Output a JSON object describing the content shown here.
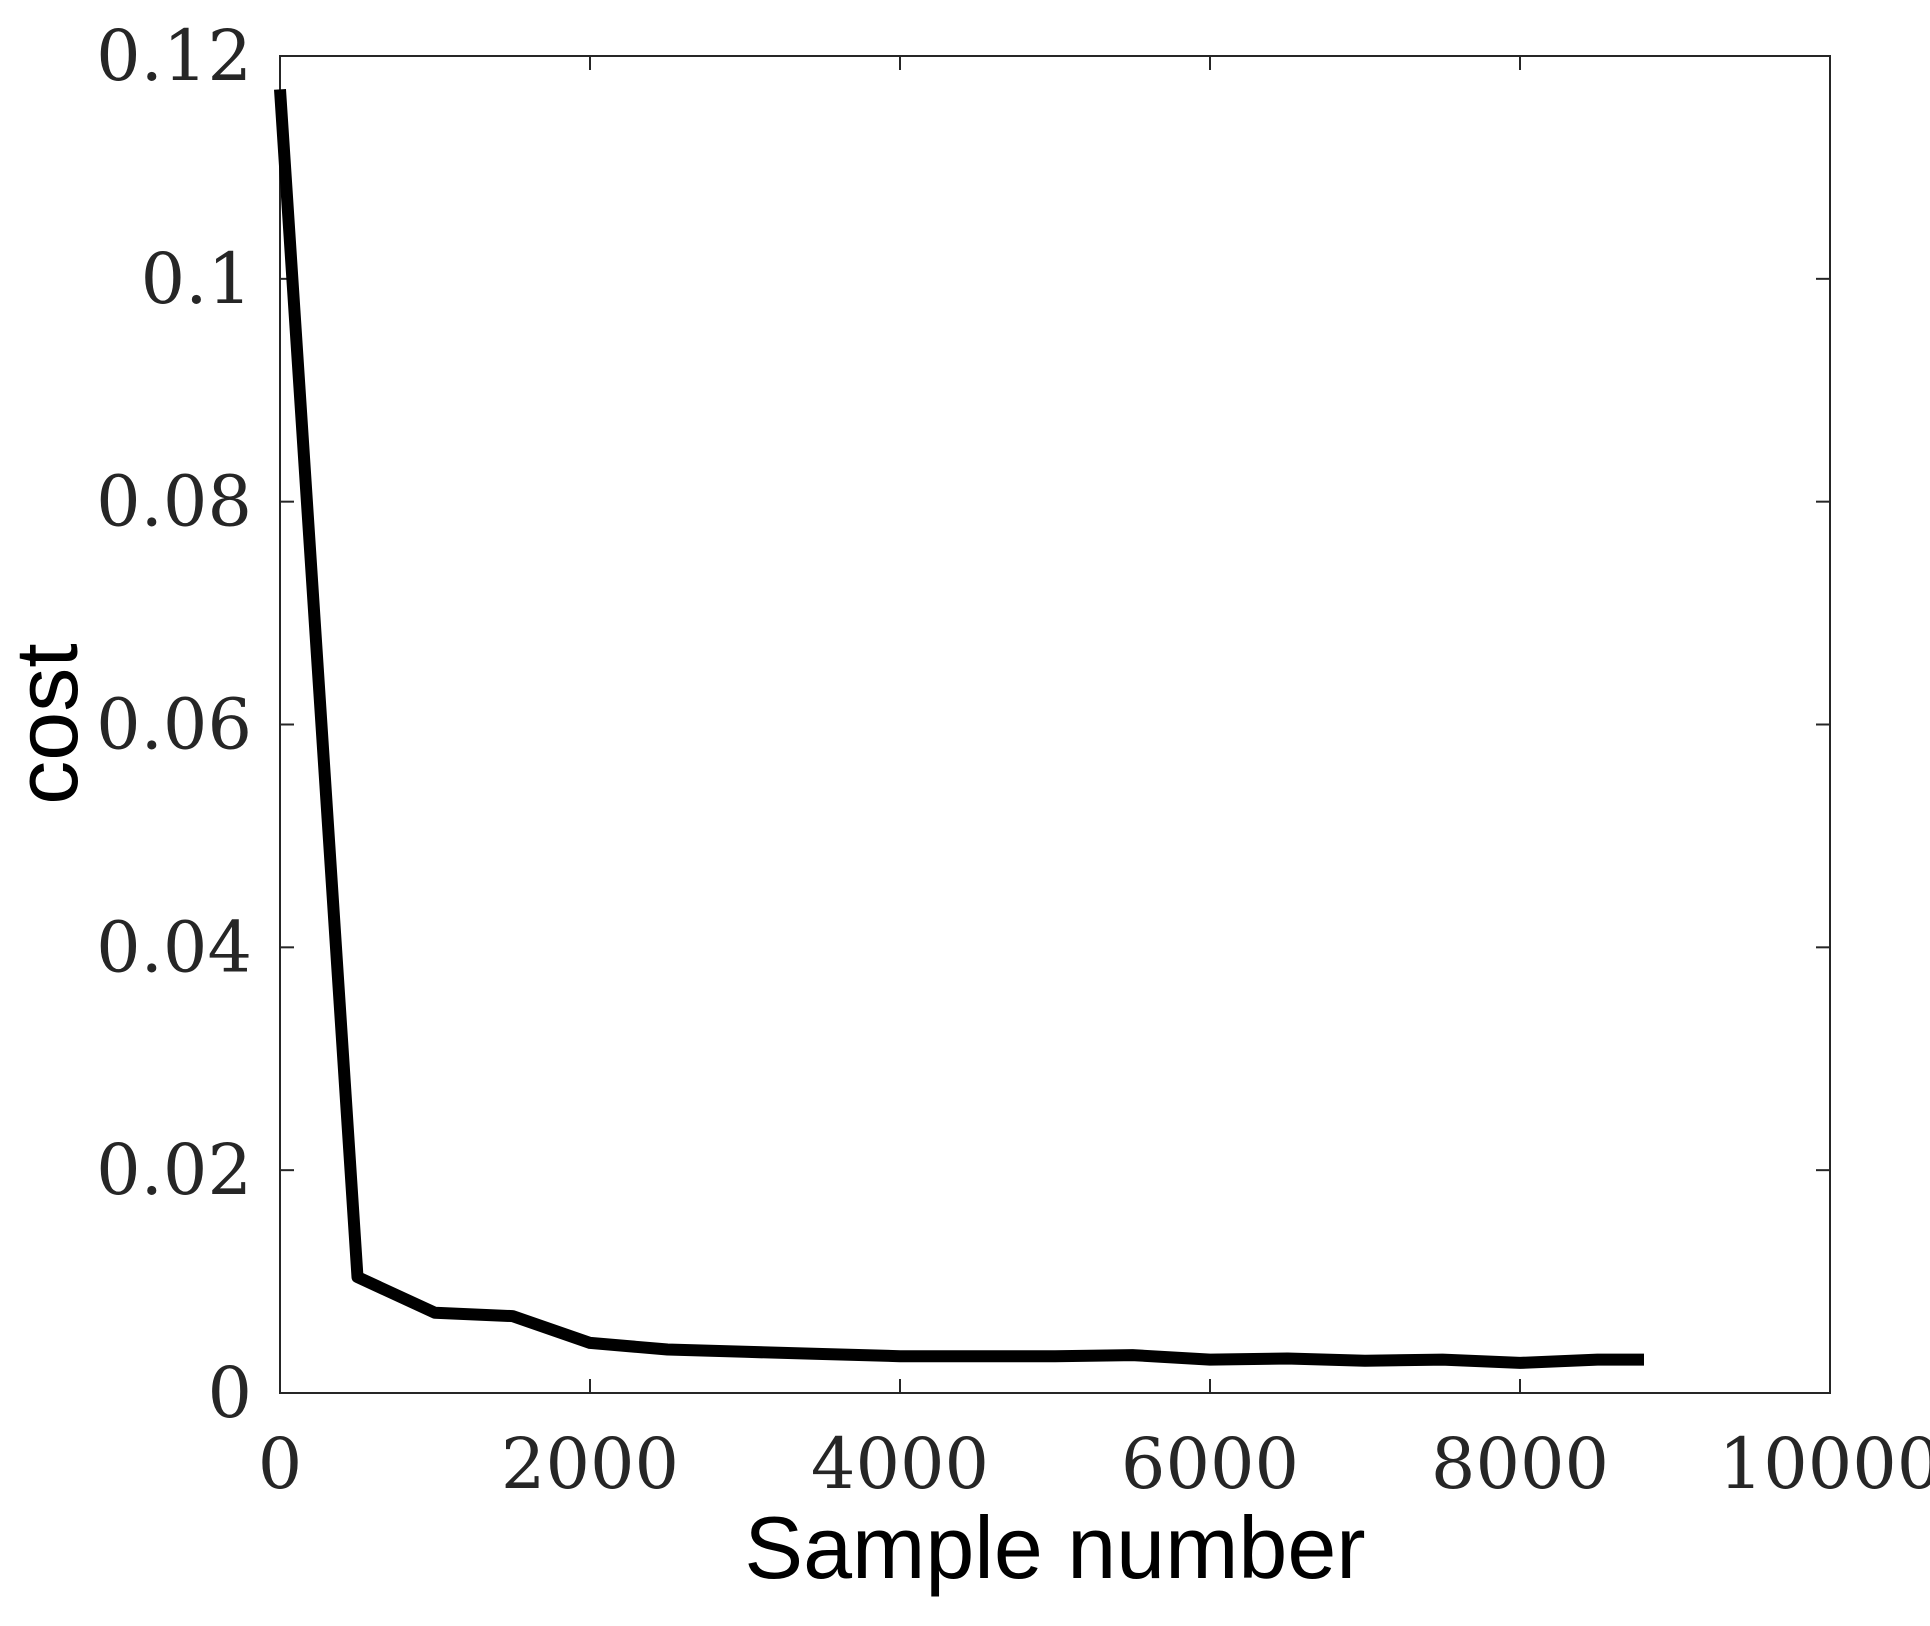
{
  "chart_data": {
    "type": "line",
    "title": "",
    "xlabel": "Sample number",
    "ylabel": "cost",
    "xlim": [
      0,
      10000
    ],
    "ylim": [
      0,
      0.12
    ],
    "xticks": [
      0,
      2000,
      4000,
      6000,
      8000,
      10000
    ],
    "xtick_labels": [
      "0",
      "2000",
      "4000",
      "6000",
      "8000",
      "10000"
    ],
    "yticks": [
      0,
      0.02,
      0.04,
      0.06,
      0.08,
      0.1,
      0.12
    ],
    "ytick_labels": [
      "0",
      "0.02",
      "0.04",
      "0.06",
      "0.08",
      "0.1",
      "0.12"
    ],
    "grid": false,
    "box": true,
    "series": [
      {
        "color": "#000000",
        "x": [
          0,
          500,
          1000,
          1500,
          2000,
          2500,
          3000,
          3500,
          4000,
          4500,
          5000,
          5500,
          6000,
          6500,
          7000,
          7500,
          8000,
          8500,
          8800
        ],
        "y": [
          0.117,
          0.0104,
          0.0072,
          0.0069,
          0.0045,
          0.0039,
          0.0037,
          0.0035,
          0.0033,
          0.0033,
          0.0033,
          0.0034,
          0.003,
          0.0031,
          0.0029,
          0.003,
          0.0027,
          0.003,
          0.003
        ]
      }
    ]
  }
}
